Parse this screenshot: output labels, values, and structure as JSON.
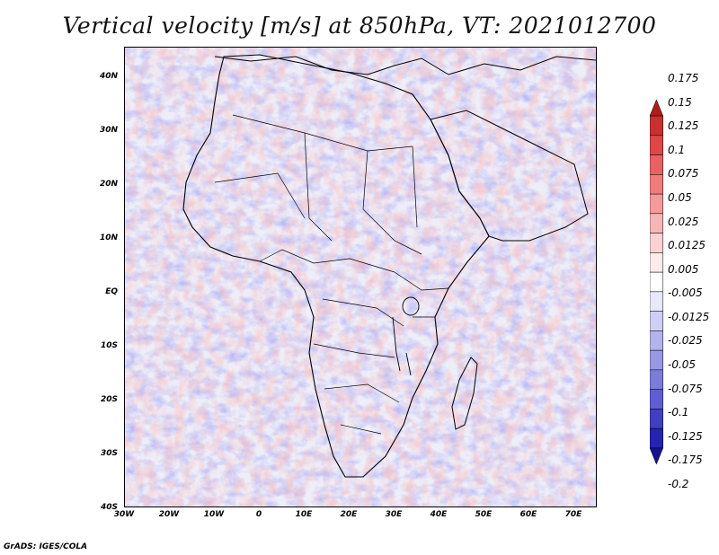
{
  "title": "Vertical velocity [m/s] at 850hPa, VT: 2021012700",
  "footer": "GrADS: IGES/COLA",
  "map": {
    "lat_labels": [
      "40N",
      "30N",
      "20N",
      "10N",
      "EQ",
      "10S",
      "20S",
      "30S",
      "40S"
    ],
    "lon_labels": [
      "30W",
      "20W",
      "10W",
      "0",
      "10E",
      "20E",
      "30E",
      "40E",
      "50E",
      "60E",
      "70E"
    ]
  },
  "colorbar": {
    "labels": [
      "0.175",
      "0.15",
      "0.125",
      "0.1",
      "0.075",
      "0.05",
      "0.025",
      "0.0125",
      "0.005",
      "-0.005",
      "-0.0125",
      "-0.025",
      "-0.05",
      "-0.075",
      "-0.1",
      "-0.125",
      "-0.175",
      "-0.2"
    ],
    "colors": [
      "#b01c1c",
      "#c93030",
      "#dc4848",
      "#e86262",
      "#f07c7c",
      "#f59999",
      "#f8b5b5",
      "#fbd2d2",
      "#fdeaea",
      "#ffffff",
      "#e8e8fb",
      "#cfcff5",
      "#b3b3ee",
      "#9898e6",
      "#7c7cdd",
      "#5e5ed2",
      "#3f3fc4",
      "#2424b0",
      "#13138f"
    ]
  }
}
